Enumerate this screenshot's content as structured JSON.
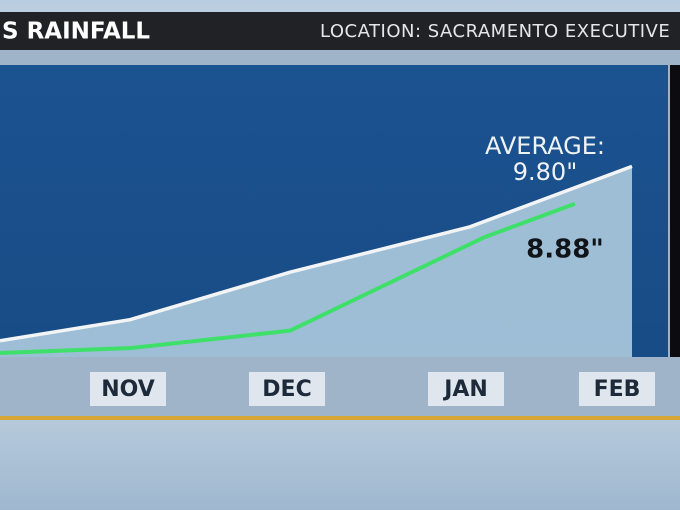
{
  "chart_data": {
    "type": "line",
    "title": "S RAINFALL",
    "subtitle": "LOCATION: SACRAMENTO EXECUTIVE",
    "categories": [
      null,
      "NOV",
      "DEC",
      "JAN",
      "FEB"
    ],
    "ylim": [
      5.1,
      12.3
    ],
    "series": [
      {
        "name": "AVERAGE:",
        "color": "#f2f4f6",
        "fill": "#a9c8dc",
        "values": [
          5.5,
          6.02,
          7.19,
          8.31,
          9.8
        ],
        "value_labels": [
          null,
          null,
          null,
          null,
          "9.80\""
        ]
      },
      {
        "name": null,
        "color": "#3ee06a",
        "values": [
          5.2,
          5.32,
          5.75,
          8.06,
          8.88
        ],
        "value_labels": [
          null,
          null,
          null,
          null,
          "8.88\""
        ]
      }
    ]
  }
}
